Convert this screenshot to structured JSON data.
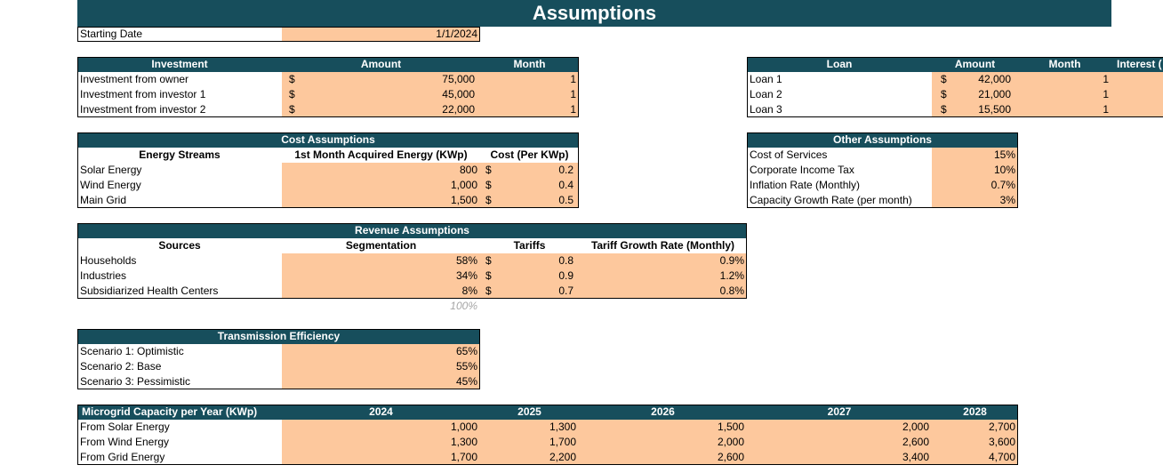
{
  "title": "Assumptions",
  "starting_date": {
    "label": "Starting Date",
    "value": "1/1/2024"
  },
  "investment": {
    "headers": [
      "Investment",
      "Amount",
      "Month"
    ],
    "rows": [
      [
        "Investment from owner",
        "$",
        "75,000",
        "1"
      ],
      [
        "Investment from investor 1",
        "$",
        "45,000",
        "1"
      ],
      [
        "Investment from investor 2",
        "$",
        "22,000",
        "1"
      ]
    ]
  },
  "loan": {
    "headers": [
      "Loan",
      "Amount",
      "Month",
      "Interest ("
    ],
    "rows": [
      [
        "Loan 1",
        "$",
        "42,000",
        "1"
      ],
      [
        "Loan 2",
        "$",
        "21,000",
        "1"
      ],
      [
        "Loan 3",
        "$",
        "15,500",
        "1"
      ]
    ]
  },
  "cost": {
    "title": "Cost Assumptions",
    "headers": [
      "Energy Streams",
      "1st Month Acquired Energy (KWp)",
      "Cost (Per KWp)"
    ],
    "rows": [
      [
        "Solar Energy",
        "800",
        "$",
        "0.2"
      ],
      [
        "Wind Energy",
        "1,000",
        "$",
        "0.4"
      ],
      [
        "Main Grid",
        "1,500",
        "$",
        "0.5"
      ]
    ]
  },
  "other": {
    "title": "Other Assumptions",
    "rows": [
      [
        "Cost of Services",
        "15%"
      ],
      [
        "Corporate Income Tax",
        "10%"
      ],
      [
        "Inflation Rate (Monthly)",
        "0.7%"
      ],
      [
        "Capacity Growth Rate (per month)",
        "3%"
      ]
    ]
  },
  "revenue": {
    "title": "Revenue Assumptions",
    "headers": [
      "Sources",
      "Segmentation",
      "Tariffs",
      "Tariff Growth Rate (Monthly)"
    ],
    "rows": [
      [
        "Households",
        "58%",
        "$",
        "0.8",
        "0.9%"
      ],
      [
        "Industries",
        "34%",
        "$",
        "0.9",
        "1.2%"
      ],
      [
        "Subsidiarized Health Centers",
        "8%",
        "$",
        "0.7",
        "0.8%"
      ]
    ],
    "total": "100%"
  },
  "transmission": {
    "title": "Transmission Efficiency",
    "rows": [
      [
        "Scenario 1: Optimistic",
        "65%"
      ],
      [
        "Scenario 2: Base",
        "55%"
      ],
      [
        "Scenario 3: Pessimistic",
        "45%"
      ]
    ]
  },
  "capacity": {
    "headers": [
      "Microgrid Capacity per Year (KWp)",
      "2024",
      "2025",
      "2026",
      "2027",
      "2028"
    ],
    "rows": [
      [
        "From Solar Energy",
        "1,000",
        "1,300",
        "1,500",
        "2,000",
        "2,700"
      ],
      [
        "From Wind Energy",
        "1,300",
        "1,700",
        "2,000",
        "2,600",
        "3,600"
      ],
      [
        "From Grid Energy",
        "1,700",
        "2,200",
        "2,600",
        "3,400",
        "4,700"
      ]
    ]
  }
}
